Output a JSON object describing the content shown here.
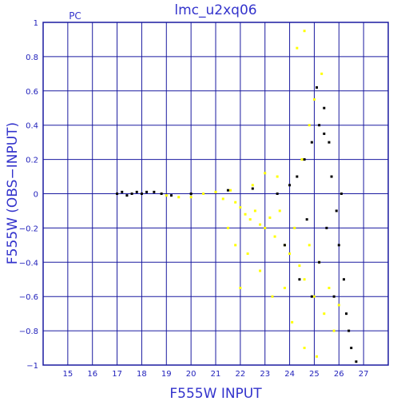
{
  "chart_data": {
    "type": "scatter",
    "title": "lmc_u2xq06",
    "annotation": "PC",
    "xlabel": "F555W INPUT",
    "ylabel": "F555W (OBS−INPUT)",
    "xlim": [
      14,
      28
    ],
    "ylim": [
      -1,
      1
    ],
    "x_ticks": [
      "15",
      "16",
      "17",
      "18",
      "19",
      "20",
      "21",
      "22",
      "23",
      "24",
      "25",
      "26",
      "27"
    ],
    "y_ticks": [
      "1",
      "0.8",
      "0.6",
      "0.4",
      "0.2",
      "0",
      "−0.2",
      "−0.4",
      "−0.6",
      "−0.8",
      "−1"
    ],
    "grid": true,
    "colors": {
      "axes": "#1a1aa0",
      "text": "#3333cc",
      "series_yellow": "#ffff00",
      "series_black": "#000000"
    },
    "series": [
      {
        "color": "#ffff00",
        "points": [
          [
            19.0,
            -0.01
          ],
          [
            19.5,
            -0.02
          ],
          [
            20.0,
            -0.02
          ],
          [
            20.5,
            0.0
          ],
          [
            21.0,
            0.01
          ],
          [
            21.3,
            -0.03
          ],
          [
            21.6,
            0.02
          ],
          [
            21.8,
            -0.05
          ],
          [
            22.0,
            -0.08
          ],
          [
            22.2,
            -0.12
          ],
          [
            22.4,
            -0.15
          ],
          [
            22.6,
            -0.1
          ],
          [
            22.8,
            -0.18
          ],
          [
            23.0,
            -0.2
          ],
          [
            23.2,
            -0.14
          ],
          [
            23.4,
            -0.25
          ],
          [
            23.6,
            -0.1
          ],
          [
            23.8,
            -0.3
          ],
          [
            24.0,
            -0.35
          ],
          [
            24.2,
            -0.2
          ],
          [
            24.4,
            -0.42
          ],
          [
            24.6,
            -0.5
          ],
          [
            24.8,
            -0.3
          ],
          [
            25.0,
            -0.6
          ],
          [
            25.2,
            -0.4
          ],
          [
            25.4,
            -0.7
          ],
          [
            25.6,
            -0.55
          ],
          [
            25.8,
            -0.8
          ],
          [
            26.0,
            -0.65
          ],
          [
            24.5,
            0.2
          ],
          [
            24.8,
            0.4
          ],
          [
            25.0,
            0.55
          ],
          [
            25.3,
            0.7
          ],
          [
            24.3,
            0.85
          ],
          [
            24.6,
            0.95
          ],
          [
            23.5,
            0.1
          ],
          [
            23.0,
            0.12
          ],
          [
            22.5,
            0.05
          ],
          [
            23.8,
            -0.55
          ],
          [
            23.3,
            -0.6
          ],
          [
            22.8,
            -0.45
          ],
          [
            22.3,
            -0.35
          ],
          [
            21.8,
            -0.3
          ],
          [
            24.1,
            -0.75
          ],
          [
            24.6,
            -0.9
          ],
          [
            25.1,
            -0.95
          ],
          [
            22.0,
            -0.55
          ],
          [
            21.5,
            -0.2
          ]
        ]
      },
      {
        "color": "#000000",
        "points": [
          [
            17.0,
            0.0
          ],
          [
            17.2,
            0.01
          ],
          [
            17.4,
            -0.01
          ],
          [
            17.6,
            0.0
          ],
          [
            17.8,
            0.01
          ],
          [
            18.0,
            0.0
          ],
          [
            18.2,
            0.01
          ],
          [
            18.5,
            0.01
          ],
          [
            18.8,
            0.0
          ],
          [
            19.2,
            -0.01
          ],
          [
            20.0,
            0.0
          ],
          [
            21.5,
            0.02
          ],
          [
            22.5,
            0.03
          ],
          [
            23.5,
            0.0
          ],
          [
            24.0,
            0.05
          ],
          [
            24.3,
            0.1
          ],
          [
            24.6,
            0.2
          ],
          [
            24.9,
            0.3
          ],
          [
            25.2,
            0.4
          ],
          [
            25.4,
            0.35
          ],
          [
            25.6,
            0.3
          ],
          [
            25.1,
            0.62
          ],
          [
            25.4,
            0.5
          ],
          [
            25.7,
            0.1
          ],
          [
            25.9,
            -0.1
          ],
          [
            26.0,
            -0.3
          ],
          [
            26.2,
            -0.5
          ],
          [
            26.3,
            -0.7
          ],
          [
            26.5,
            -0.9
          ],
          [
            25.5,
            -0.2
          ],
          [
            25.2,
            -0.4
          ],
          [
            24.9,
            -0.6
          ],
          [
            24.7,
            -0.15
          ],
          [
            25.8,
            -0.6
          ],
          [
            26.1,
            0.0
          ],
          [
            26.4,
            -0.8
          ],
          [
            26.7,
            -0.98
          ],
          [
            24.4,
            -0.5
          ],
          [
            23.8,
            -0.3
          ]
        ]
      }
    ]
  }
}
